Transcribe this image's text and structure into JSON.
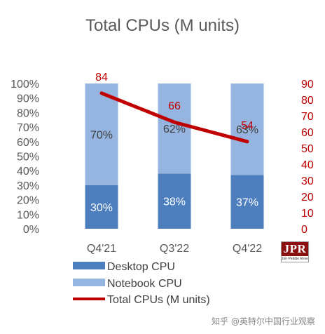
{
  "chart_data": {
    "type": "bar+line",
    "title": "Total CPUs (M units)",
    "categories": [
      "Q4'21",
      "Q3'22",
      "Q4'22"
    ],
    "series": [
      {
        "name": "Desktop CPU",
        "kind": "stacked-bar",
        "axis": "left",
        "values": [
          30,
          38,
          37
        ],
        "labels": [
          "30%",
          "38%",
          "37%"
        ],
        "color": "#4d7ebd"
      },
      {
        "name": "Notebook CPU",
        "kind": "stacked-bar",
        "axis": "left",
        "values": [
          70,
          62,
          63
        ],
        "labels": [
          "70%",
          "62%",
          "63%"
        ],
        "color": "#95b4e0"
      },
      {
        "name": "Total CPUs (M units)",
        "kind": "line",
        "axis": "right",
        "values": [
          84,
          66,
          54
        ],
        "labels": [
          "84",
          "66",
          "54"
        ],
        "color": "#c00000"
      }
    ],
    "left_axis": {
      "ylim": [
        0,
        100
      ],
      "ticks": [
        "0%",
        "10%",
        "20%",
        "30%",
        "40%",
        "50%",
        "60%",
        "70%",
        "80%",
        "90%",
        "100%"
      ]
    },
    "right_axis": {
      "ylim": [
        0,
        90
      ],
      "ticks": [
        "0",
        "10",
        "20",
        "30",
        "40",
        "50",
        "60",
        "70",
        "80",
        "90"
      ],
      "color": "#c00000"
    },
    "legend_position": "bottom-left",
    "grid": false
  },
  "logo": {
    "text": "JPR",
    "subtext": "Jon Peddie Research"
  },
  "watermark": "知乎 @英特尔中国行业观察"
}
